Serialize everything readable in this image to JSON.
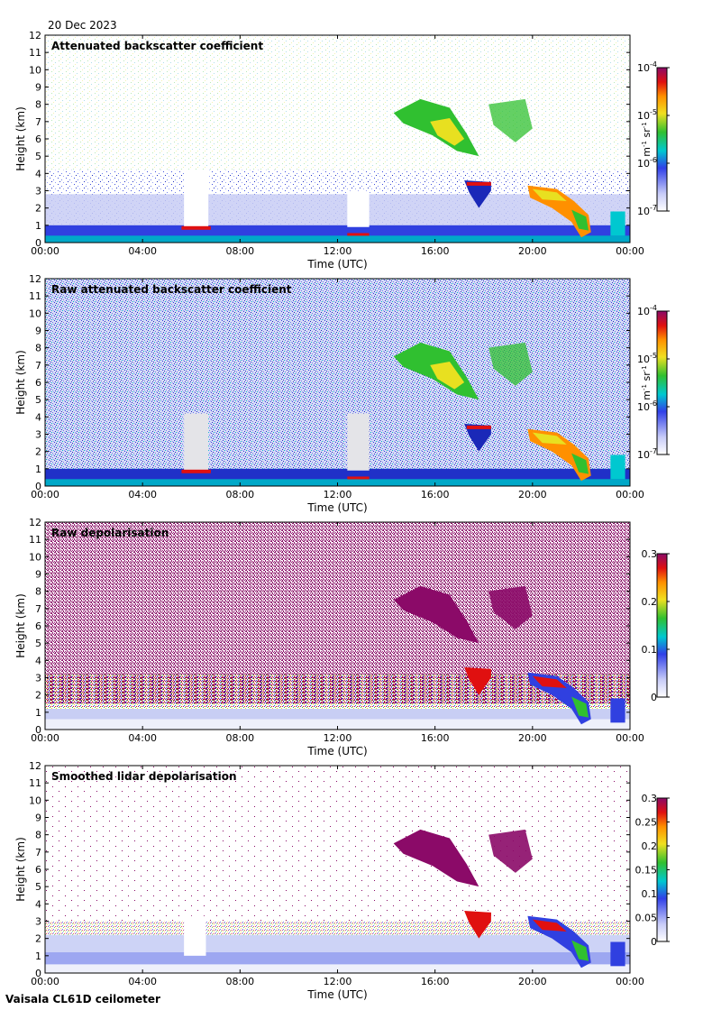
{
  "header": {
    "date": "20 Dec 2023"
  },
  "footer": {
    "instrument": "Vaisala CL61D ceilometer"
  },
  "chart_data": [
    {
      "type": "heatmap",
      "title": "Attenuated backscatter coefficient",
      "xlabel": "Time (UTC)",
      "ylabel": "Height (km)",
      "xticks": [
        "00:00",
        "04:00",
        "08:00",
        "12:00",
        "16:00",
        "20:00",
        "00:00"
      ],
      "yticks": [
        "0",
        "1",
        "2",
        "3",
        "4",
        "5",
        "6",
        "7",
        "8",
        "9",
        "10",
        "11",
        "12"
      ],
      "xlim_hours": [
        0,
        24
      ],
      "ylim_km": [
        0,
        12
      ],
      "colorbar": {
        "scale": "log",
        "ticks": [
          "10-7",
          "10-6",
          "10-5",
          "10-4"
        ],
        "units": "m-1 sr-1"
      },
      "features": [
        {
          "name": "boundary layer",
          "start_hour": 0,
          "end_hour": 24,
          "top_km": 1.0,
          "level": "low"
        },
        {
          "name": "scattered noise",
          "start_hour": 0,
          "end_hour": 24,
          "top_km": 4.2,
          "level": "very-low"
        },
        {
          "name": "gap",
          "start_hour": 5.7,
          "end_hour": 6.7,
          "top_km": 4.2,
          "level": "none"
        },
        {
          "name": "gap",
          "start_hour": 12.4,
          "end_hour": 13.3,
          "top_km": 3.0,
          "level": "none"
        },
        {
          "name": "mid cloud",
          "start_hour": 14.2,
          "end_hour": 20.1,
          "bottom_km": 5.0,
          "top_km": 8.4,
          "level": "moderate"
        },
        {
          "name": "cloud layer",
          "start_hour": 17.3,
          "end_hour": 22.8,
          "bottom_km": 0.4,
          "top_km": 3.5,
          "level": "high"
        }
      ]
    },
    {
      "type": "heatmap",
      "title": "Raw attenuated backscatter coefficient",
      "xlabel": "Time (UTC)",
      "ylabel": "Height (km)",
      "xticks": [
        "00:00",
        "04:00",
        "08:00",
        "12:00",
        "16:00",
        "20:00",
        "00:00"
      ],
      "yticks": [
        "0",
        "1",
        "2",
        "3",
        "4",
        "5",
        "6",
        "7",
        "8",
        "9",
        "10",
        "11",
        "12"
      ],
      "xlim_hours": [
        0,
        24
      ],
      "ylim_km": [
        0,
        12
      ],
      "colorbar": {
        "scale": "log",
        "ticks": [
          "10-7",
          "10-6",
          "10-5",
          "10-4"
        ],
        "units": "m-1 sr-1"
      },
      "features": [
        {
          "name": "noise field",
          "start_hour": 0,
          "end_hour": 24,
          "top_km": 12,
          "level": "very-low"
        },
        {
          "name": "mid cloud",
          "start_hour": 14.2,
          "end_hour": 20.1,
          "bottom_km": 5.0,
          "top_km": 8.4,
          "level": "moderate"
        },
        {
          "name": "cloud layer",
          "start_hour": 17.3,
          "end_hour": 22.8,
          "bottom_km": 0.4,
          "top_km": 3.5,
          "level": "high"
        }
      ]
    },
    {
      "type": "heatmap",
      "title": "Raw depolarisation",
      "xlabel": "Time (UTC)",
      "ylabel": "Height (km)",
      "xticks": [
        "00:00",
        "04:00",
        "08:00",
        "12:00",
        "16:00",
        "20:00",
        "00:00"
      ],
      "yticks": [
        "0",
        "1",
        "2",
        "3",
        "4",
        "5",
        "6",
        "7",
        "8",
        "9",
        "10",
        "11",
        "12"
      ],
      "xlim_hours": [
        0,
        24
      ],
      "ylim_km": [
        0,
        12
      ],
      "colorbar": {
        "scale": "linear",
        "ticks": [
          "0",
          "0.1",
          "0.2",
          "0.3"
        ]
      },
      "features": [
        {
          "name": "noise field",
          "start_hour": 0,
          "end_hour": 24,
          "bottom_km": 1.5,
          "top_km": 12,
          "level": "high"
        },
        {
          "name": "mid cloud",
          "start_hour": 14.2,
          "end_hour": 20.1,
          "bottom_km": 5.0,
          "top_km": 8.4,
          "level": "high"
        },
        {
          "name": "cloud layer",
          "start_hour": 17.3,
          "end_hour": 22.8,
          "bottom_km": 0.4,
          "top_km": 3.5,
          "level": "mixed"
        }
      ]
    },
    {
      "type": "heatmap",
      "title": "Smoothed lidar depolarisation",
      "xlabel": "Time (UTC)",
      "ylabel": "Height (km)",
      "xticks": [
        "00:00",
        "04:00",
        "08:00",
        "12:00",
        "16:00",
        "20:00",
        "00:00"
      ],
      "yticks": [
        "0",
        "1",
        "2",
        "3",
        "4",
        "5",
        "6",
        "7",
        "8",
        "9",
        "10",
        "11",
        "12"
      ],
      "xlim_hours": [
        0,
        24
      ],
      "ylim_km": [
        0,
        12
      ],
      "colorbar": {
        "scale": "linear",
        "ticks": [
          "0",
          "0.05",
          "0.1",
          "0.15",
          "0.2",
          "0.25",
          "0.3"
        ]
      },
      "features": [
        {
          "name": "boundary layer",
          "start_hour": 0,
          "end_hour": 24,
          "top_km": 2.5,
          "level": "low"
        },
        {
          "name": "mid cloud",
          "start_hour": 14.2,
          "end_hour": 20.1,
          "bottom_km": 5.0,
          "top_km": 8.4,
          "level": "high"
        },
        {
          "name": "cloud layer",
          "start_hour": 17.3,
          "end_hour": 22.8,
          "bottom_km": 0.4,
          "top_km": 3.5,
          "level": "mixed"
        }
      ]
    }
  ],
  "colors": {
    "purple": "#8b0a68",
    "white": "#ffffff",
    "lightblue": "#c8d0f5",
    "blue": "#3040e0",
    "darkblue": "#1010b0",
    "cyan": "#00c8d0",
    "green": "#30c030",
    "yellow": "#f0e020",
    "orange": "#ff9000",
    "red": "#e01010"
  }
}
